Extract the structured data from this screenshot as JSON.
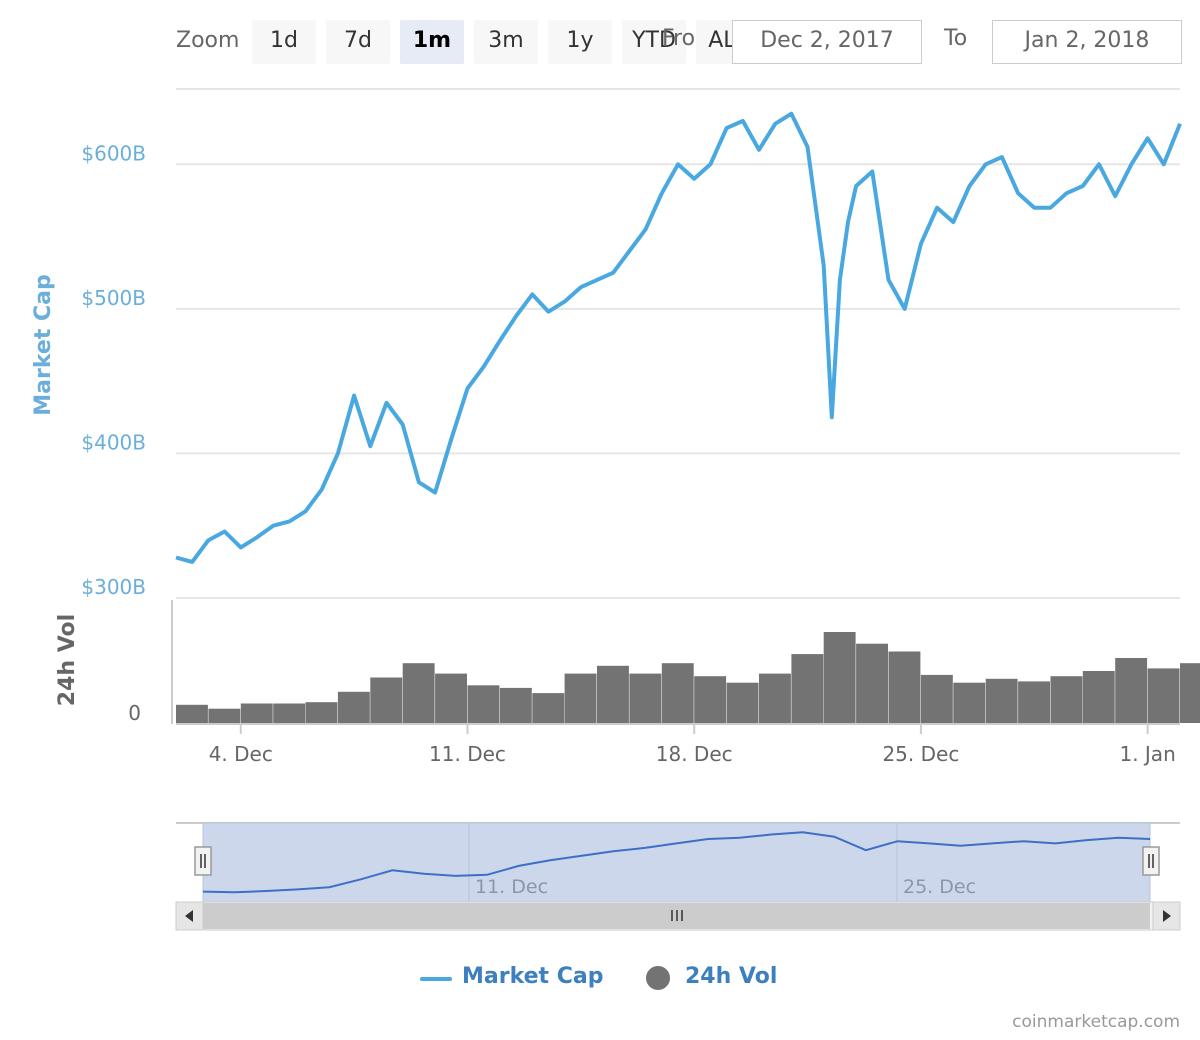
{
  "range_selector": {
    "zoom_label": "Zoom",
    "buttons": [
      "1d",
      "7d",
      "1m",
      "3m",
      "1y",
      "YTD",
      "ALL"
    ],
    "selected": "1m",
    "from_label": "From",
    "from_value": "Dec 2, 2017",
    "to_label": "To",
    "to_value": "Jan 2, 2018"
  },
  "credit": "coinmarketcap.com",
  "legend": {
    "market_cap": "Market Cap",
    "volume": "24h Vol"
  },
  "colors": {
    "market_cap_line": "#4aa8e0",
    "volume_bars": "#737373",
    "navigator_fill": "#cdd7ec",
    "navigator_line": "#3e6fc6",
    "grid": "#e6e6e6",
    "axis_label_cap": "#6aaedc",
    "axis_label_vol": "#666666"
  },
  "chart_data": [
    {
      "type": "line",
      "title": "",
      "ylabel": "Market Cap",
      "ylim": [
        300,
        650
      ],
      "y_ticks": [
        300,
        400,
        500,
        600
      ],
      "y_tick_labels": [
        "$300B",
        "$400B",
        "$500B",
        "$600B"
      ],
      "x_start": "2017-12-02",
      "x_end": "2018-01-02",
      "x_ticks": [
        "2017-12-04",
        "2017-12-11",
        "2017-12-18",
        "2017-12-25",
        "2018-01-01"
      ],
      "x_tick_labels": [
        "4. Dec",
        "11. Dec",
        "18. Dec",
        "25. Dec",
        "1. Jan"
      ],
      "grid": true,
      "series": [
        {
          "name": "Market Cap",
          "x": [
            "2017-12-02 00:00",
            "2017-12-02 12:00",
            "2017-12-03 00:00",
            "2017-12-03 12:00",
            "2017-12-04 00:00",
            "2017-12-04 12:00",
            "2017-12-05 00:00",
            "2017-12-05 12:00",
            "2017-12-06 00:00",
            "2017-12-06 12:00",
            "2017-12-07 00:00",
            "2017-12-07 12:00",
            "2017-12-08 00:00",
            "2017-12-08 12:00",
            "2017-12-09 00:00",
            "2017-12-09 12:00",
            "2017-12-10 00:00",
            "2017-12-10 12:00",
            "2017-12-11 00:00",
            "2017-12-11 12:00",
            "2017-12-12 00:00",
            "2017-12-12 12:00",
            "2017-12-13 00:00",
            "2017-12-13 12:00",
            "2017-12-14 00:00",
            "2017-12-14 12:00",
            "2017-12-15 00:00",
            "2017-12-15 12:00",
            "2017-12-16 00:00",
            "2017-12-16 12:00",
            "2017-12-17 00:00",
            "2017-12-17 12:00",
            "2017-12-18 00:00",
            "2017-12-18 12:00",
            "2017-12-19 00:00",
            "2017-12-19 12:00",
            "2017-12-20 00:00",
            "2017-12-20 12:00",
            "2017-12-21 00:00",
            "2017-12-21 12:00",
            "2017-12-22 00:00",
            "2017-12-22 06:00",
            "2017-12-22 12:00",
            "2017-12-22 18:00",
            "2017-12-23 00:00",
            "2017-12-23 12:00",
            "2017-12-24 00:00",
            "2017-12-24 12:00",
            "2017-12-25 00:00",
            "2017-12-25 12:00",
            "2017-12-26 00:00",
            "2017-12-26 12:00",
            "2017-12-27 00:00",
            "2017-12-27 12:00",
            "2017-12-28 00:00",
            "2017-12-28 12:00",
            "2017-12-29 00:00",
            "2017-12-29 12:00",
            "2017-12-30 00:00",
            "2017-12-30 12:00",
            "2017-12-31 00:00",
            "2017-12-31 12:00",
            "2018-01-01 00:00",
            "2018-01-01 12:00",
            "2018-01-02 00:00"
          ],
          "values": [
            328,
            325,
            340,
            346,
            335,
            342,
            350,
            353,
            360,
            375,
            400,
            440,
            405,
            435,
            420,
            380,
            373,
            410,
            445,
            460,
            478,
            495,
            510,
            498,
            505,
            515,
            520,
            525,
            540,
            555,
            580,
            600,
            590,
            600,
            625,
            630,
            610,
            628,
            635,
            612,
            530,
            425,
            520,
            560,
            585,
            595,
            520,
            500,
            545,
            570,
            560,
            585,
            600,
            605,
            580,
            570,
            570,
            580,
            585,
            600,
            578,
            600,
            618,
            600,
            628
          ]
        }
      ]
    },
    {
      "type": "bar",
      "ylabel": "24h Vol",
      "y_ticks": [
        0
      ],
      "y_tick_labels": [
        "0"
      ],
      "x_start": "2017-12-02",
      "x_end": "2018-01-02",
      "series": [
        {
          "name": "24h Vol",
          "x": [
            "2017-12-02",
            "2017-12-03",
            "2017-12-04",
            "2017-12-05",
            "2017-12-06",
            "2017-12-07",
            "2017-12-08",
            "2017-12-09",
            "2017-12-10",
            "2017-12-11",
            "2017-12-12",
            "2017-12-13",
            "2017-12-14",
            "2017-12-15",
            "2017-12-16",
            "2017-12-17",
            "2017-12-18",
            "2017-12-19",
            "2017-12-20",
            "2017-12-21",
            "2017-12-22",
            "2017-12-23",
            "2017-12-24",
            "2017-12-25",
            "2017-12-26",
            "2017-12-27",
            "2017-12-28",
            "2017-12-29",
            "2017-12-30",
            "2017-12-31",
            "2018-01-01",
            "2018-01-02"
          ],
          "values": [
            14,
            11,
            15,
            15,
            16,
            24,
            35,
            46,
            38,
            29,
            27,
            23,
            38,
            44,
            38,
            46,
            36,
            31,
            38,
            53,
            70,
            61,
            55,
            37,
            31,
            34,
            32,
            36,
            40,
            50,
            42,
            46
          ]
        }
      ]
    },
    {
      "type": "area",
      "x_tick_labels": [
        "11. Dec",
        "25. Dec"
      ],
      "values": [
        375,
        372,
        378,
        385,
        395,
        430,
        470,
        455,
        445,
        450,
        490,
        515,
        535,
        555,
        570,
        590,
        610,
        615,
        630,
        640,
        620,
        560,
        600,
        590,
        580,
        590,
        600,
        590,
        605,
        615,
        610
      ]
    }
  ]
}
